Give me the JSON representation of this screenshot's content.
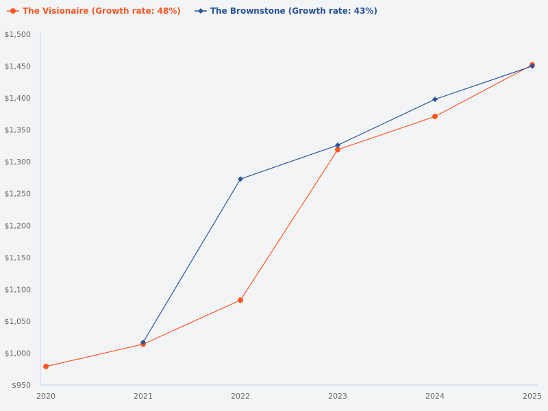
{
  "chart_data": {
    "type": "line",
    "title": "",
    "xlabel": "",
    "ylabel": "",
    "x": [
      "2020",
      "2021",
      "2022",
      "2023",
      "2024",
      "2025"
    ],
    "ylim": [
      950,
      1500
    ],
    "yticks": [
      950,
      1000,
      1050,
      1100,
      1150,
      1200,
      1250,
      1300,
      1350,
      1400,
      1450,
      1500
    ],
    "ytick_labels": [
      "$950",
      "$1,000",
      "$1,050",
      "$1,100",
      "$1,150",
      "$1,200",
      "$1,250",
      "$1,300",
      "$1,350",
      "$1,400",
      "$1,450",
      "$1,500"
    ],
    "grid": false,
    "legend_placement": "top-left",
    "series": [
      {
        "name": "The Visionaire (Growth rate: 48%)",
        "color": "#ff5722",
        "marker": "circle",
        "values": [
          979,
          1014,
          1083,
          1319,
          1371,
          1452
        ]
      },
      {
        "name": "The Brownstone (Growth rate: 43%)",
        "color": "#2a52a0",
        "marker": "diamond",
        "values": [
          null,
          1017,
          1273,
          1326,
          1398,
          1450
        ]
      }
    ]
  }
}
